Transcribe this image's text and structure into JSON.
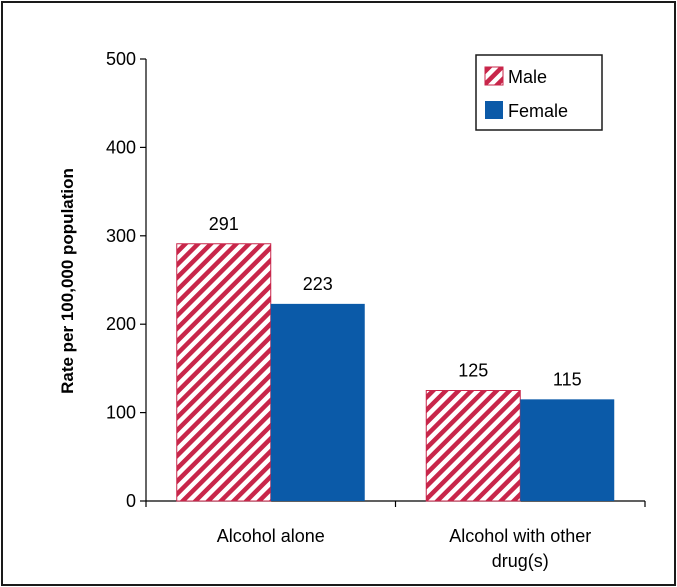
{
  "chart_data": {
    "type": "bar",
    "categories": [
      "Alcohol alone",
      "Alcohol with other drug(s)"
    ],
    "category_lines": [
      [
        "Alcohol alone"
      ],
      [
        "Alcohol with other",
        "drug(s)"
      ]
    ],
    "series": [
      {
        "name": "Male",
        "values": [
          291,
          125
        ],
        "color": "#c8264a",
        "pattern": "diagonal-hatch"
      },
      {
        "name": "Female",
        "values": [
          223,
          115
        ],
        "color": "#0b5aa8",
        "pattern": "solid"
      }
    ],
    "data_labels": [
      [
        "291",
        "125"
      ],
      [
        "223",
        "115"
      ]
    ],
    "ylabel": "Rate per 100,000 population",
    "ylim": [
      0,
      500
    ],
    "yticks": [
      0,
      100,
      200,
      300,
      400,
      500
    ],
    "legend_position": "top-right",
    "grid": false
  }
}
